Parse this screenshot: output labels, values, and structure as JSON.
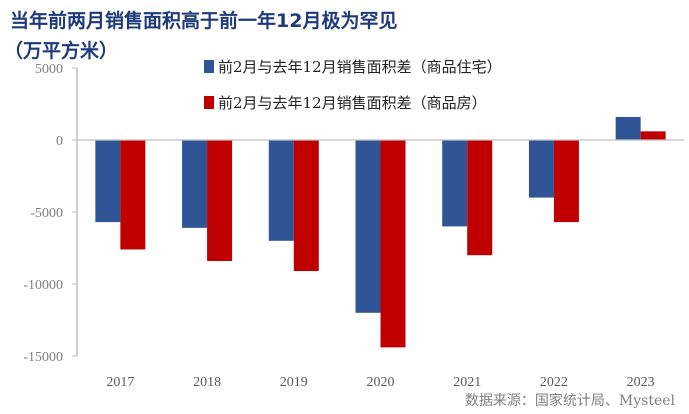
{
  "title_line1": "当年前两月销售面积高于前一年12月极为罕见",
  "title_line2": "（万平方米）",
  "source": "数据来源：国家统计局、Mysteel",
  "chart_data": {
    "type": "bar",
    "title": "当年前两月销售面积高于前一年12月极为罕见（万平方米）",
    "categories": [
      "2017",
      "2018",
      "2019",
      "2020",
      "2021",
      "2022",
      "2023"
    ],
    "series": [
      {
        "name": "前2月与去年12月销售面积差（商品住宅）",
        "color": "#2f5597",
        "values": [
          -5700,
          -6100,
          -7000,
          -12000,
          -6000,
          -4000,
          1600
        ]
      },
      {
        "name": "前2月与去年12月销售面积差（商品房）",
        "color": "#c00000",
        "values": [
          -7600,
          -8400,
          -9100,
          -14400,
          -8000,
          -5700,
          600
        ]
      }
    ],
    "ylim": [
      -15000,
      5000
    ],
    "yticks": [
      5000,
      0,
      -5000,
      -10000,
      -15000
    ],
    "legend": "top-center",
    "grid": false
  }
}
